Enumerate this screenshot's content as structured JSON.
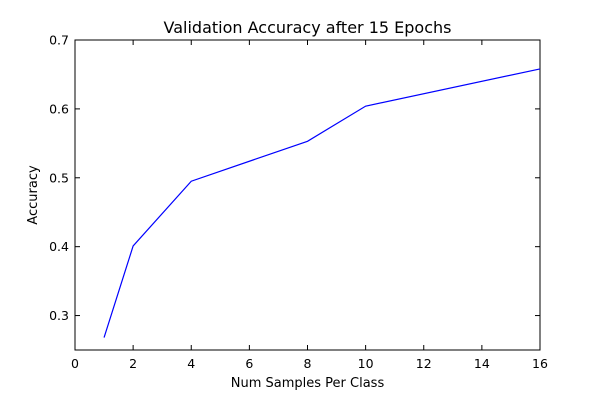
{
  "chart_data": {
    "type": "line",
    "title": "Validation Accuracy after 15 Epochs",
    "xlabel": "Num Samples Per Class",
    "ylabel": "Accuracy",
    "xlim": [
      0,
      16
    ],
    "ylim": [
      0.25,
      0.7
    ],
    "x_ticks": [
      "0",
      "2",
      "4",
      "6",
      "8",
      "10",
      "12",
      "14",
      "16"
    ],
    "y_ticks": [
      "0.3",
      "0.4",
      "0.5",
      "0.6",
      "0.7"
    ],
    "grid": false,
    "series": [
      {
        "color": "#0000ff",
        "x": [
          1,
          2,
          4,
          8,
          10,
          16
        ],
        "y": [
          0.268,
          0.401,
          0.495,
          0.553,
          0.604,
          0.658
        ]
      }
    ]
  }
}
